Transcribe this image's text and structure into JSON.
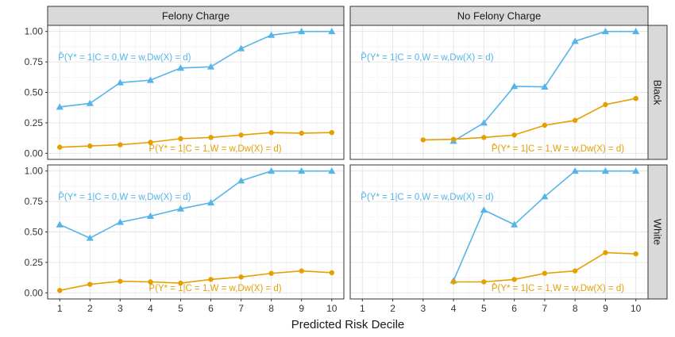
{
  "chart_data": {
    "type": "line",
    "xlabel": "Predicted Risk Decile",
    "ylabel": "",
    "xlim": [
      0.6,
      10.4
    ],
    "ylim": [
      -0.05,
      1.05
    ],
    "x_ticks": [
      1,
      2,
      3,
      4,
      5,
      6,
      7,
      8,
      9,
      10
    ],
    "y_ticks": [
      0.0,
      0.25,
      0.5,
      0.75,
      1.0
    ],
    "y_tick_labels": [
      "0.00",
      "0.25",
      "0.50",
      "0.75",
      "1.00"
    ],
    "grid": true,
    "column_facets": [
      "Felony Charge",
      "No Felony Charge"
    ],
    "row_facets": [
      "Black",
      "White"
    ],
    "colors": {
      "c0": "#56B4E9",
      "c1": "#E69F00"
    },
    "panels": [
      {
        "col": "Felony Charge",
        "row": "Black",
        "series": [
          {
            "label": "P̂(Y* = 1|C = 0,W = w,Dw(X) = d)",
            "color_key": "c0",
            "marker": "triangle",
            "x": [
              1,
              2,
              3,
              4,
              5,
              6,
              7,
              8,
              9,
              10
            ],
            "values": [
              0.38,
              0.41,
              0.58,
              0.6,
              0.7,
              0.71,
              0.86,
              0.97,
              1.0,
              1.0
            ]
          },
          {
            "label": "P̂(Y* = 1|C = 1,W = w,Dw(X) = d)",
            "color_key": "c1",
            "marker": "circle",
            "x": [
              1,
              2,
              3,
              4,
              5,
              6,
              7,
              8,
              9,
              10
            ],
            "values": [
              0.05,
              0.06,
              0.07,
              0.09,
              0.12,
              0.13,
              0.15,
              0.17,
              0.165,
              0.17
            ]
          }
        ]
      },
      {
        "col": "No Felony Charge",
        "row": "Black",
        "series": [
          {
            "label": "P̂(Y* = 1|C = 0,W = w,Dw(X) = d)",
            "color_key": "c0",
            "marker": "triangle",
            "x": [
              4,
              5,
              6,
              7,
              8,
              9,
              10
            ],
            "values": [
              0.1,
              0.25,
              0.55,
              0.545,
              0.92,
              1.0,
              1.0
            ]
          },
          {
            "label": "P̂(Y* = 1|C = 1,W = w,Dw(X) = d)",
            "color_key": "c1",
            "marker": "circle",
            "x": [
              3,
              4,
              5,
              6,
              7,
              8,
              9,
              10
            ],
            "values": [
              0.11,
              0.115,
              0.13,
              0.15,
              0.23,
              0.27,
              0.4,
              0.45
            ]
          }
        ]
      },
      {
        "col": "Felony Charge",
        "row": "White",
        "series": [
          {
            "label": "P̂(Y* = 1|C = 0,W = w,Dw(X) = d)",
            "color_key": "c0",
            "marker": "triangle",
            "x": [
              1,
              2,
              3,
              4,
              5,
              6,
              7,
              8,
              9,
              10
            ],
            "values": [
              0.56,
              0.45,
              0.58,
              0.63,
              0.69,
              0.74,
              0.92,
              1.0,
              1.0,
              1.0
            ]
          },
          {
            "label": "P̂(Y* = 1|C = 1,W = w,Dw(X) = d)",
            "color_key": "c1",
            "marker": "circle",
            "x": [
              1,
              2,
              3,
              4,
              5,
              6,
              7,
              8,
              9,
              10
            ],
            "values": [
              0.02,
              0.07,
              0.095,
              0.09,
              0.08,
              0.11,
              0.13,
              0.16,
              0.18,
              0.165
            ]
          }
        ]
      },
      {
        "col": "No Felony Charge",
        "row": "White",
        "series": [
          {
            "label": "P̂(Y* = 1|C = 0,W = w,Dw(X) = d)",
            "color_key": "c0",
            "marker": "triangle",
            "x": [
              4,
              5,
              6,
              7,
              8,
              9,
              10
            ],
            "values": [
              0.1,
              0.68,
              0.56,
              0.79,
              1.0,
              1.0,
              1.0
            ]
          },
          {
            "label": "P̂(Y* = 1|C = 1,W = w,Dw(X) = d)",
            "color_key": "c1",
            "marker": "circle",
            "x": [
              4,
              5,
              6,
              7,
              8,
              9,
              10
            ],
            "values": [
              0.09,
              0.09,
              0.11,
              0.16,
              0.18,
              0.33,
              0.32
            ]
          }
        ]
      }
    ],
    "annotations": [
      {
        "panel": 0,
        "text": "P̂(Y* = 1|C = 0,W = w,Dw(X) = d)",
        "color_key": "c0",
        "x": 1,
        "y": 0.79
      },
      {
        "panel": 0,
        "text": "P̂(Y* = 1|C = 1,W = w,Dw(X) = d)",
        "color_key": "c1",
        "x": 4.0,
        "y": 0.04
      },
      {
        "panel": 1,
        "text": "P̂(Y* = 1|C = 0,W = w,Dw(X) = d)",
        "color_key": "c0",
        "x": 1,
        "y": 0.79
      },
      {
        "panel": 1,
        "text": "P̂(Y* = 1|C = 1,W = w,Dw(X) = d)",
        "color_key": "c1",
        "x": 5.3,
        "y": 0.04
      },
      {
        "panel": 2,
        "text": "P̂(Y* = 1|C = 0,W = w,Dw(X) = d)",
        "color_key": "c0",
        "x": 1,
        "y": 0.79
      },
      {
        "panel": 2,
        "text": "P̂(Y* = 1|C = 1,W = w,Dw(X) = d)",
        "color_key": "c1",
        "x": 4.0,
        "y": 0.04
      },
      {
        "panel": 3,
        "text": "P̂(Y* = 1|C = 0,W = w,Dw(X) = d)",
        "color_key": "c0",
        "x": 1,
        "y": 0.79
      },
      {
        "panel": 3,
        "text": "P̂(Y* = 1|C = 1,W = w,Dw(X) = d)",
        "color_key": "c1",
        "x": 5.3,
        "y": 0.04
      }
    ]
  }
}
